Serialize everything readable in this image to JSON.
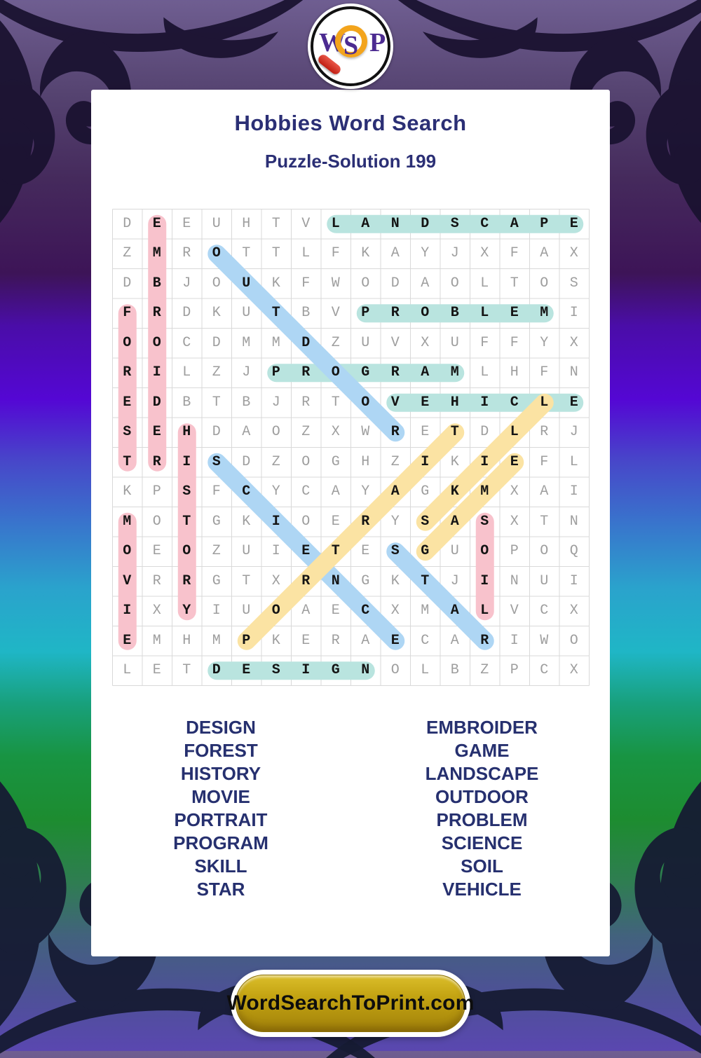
{
  "header": {
    "title": "Hobbies Word Search",
    "subtitle": "Puzzle-Solution 199"
  },
  "logo": {
    "w": "W",
    "s": "S",
    "p": "P"
  },
  "grid": {
    "size": 16,
    "rows": [
      "DEEUHTVLANDSCAPE",
      "ZMROTTLFKAYJXFAX",
      "DBJOUKFWODAOLTOS",
      "FRDKUTBVPROBLEMI",
      "OOCDMMDZUVXUFFYX",
      "RILZJPROGRAMLHFN",
      "EDBTBJRTOVEHICLE",
      "SEHDAOZXWRETDLRJ",
      "TRISDZOGHZIKIEFL",
      "KPSFCYCAYAGKMXAI",
      "MOTGKIOERYSASXTN",
      "OEOZUIETESGUOPOQ",
      "VRRGTXRNGKTJINUI",
      "IXYIUOAECXMALVCX",
      "EMHMPKERAECARIWO",
      "LETDESIGNOLBZPCX"
    ]
  },
  "solutions": [
    {
      "word": "LANDSCAPE",
      "start": [
        1,
        8
      ],
      "end": [
        1,
        16
      ],
      "color": "teal"
    },
    {
      "word": "PROBLEM",
      "start": [
        4,
        9
      ],
      "end": [
        4,
        15
      ],
      "color": "teal"
    },
    {
      "word": "PROGRAM",
      "start": [
        6,
        6
      ],
      "end": [
        6,
        12
      ],
      "color": "teal"
    },
    {
      "word": "VEHICLE",
      "start": [
        7,
        10
      ],
      "end": [
        7,
        16
      ],
      "color": "teal"
    },
    {
      "word": "DESIGN",
      "start": [
        16,
        4
      ],
      "end": [
        16,
        9
      ],
      "color": "teal"
    },
    {
      "word": "EMBROIDER",
      "start": [
        1,
        2
      ],
      "end": [
        9,
        2
      ],
      "color": "pink"
    },
    {
      "word": "FOREST",
      "start": [
        4,
        1
      ],
      "end": [
        9,
        1
      ],
      "color": "pink"
    },
    {
      "word": "HISTORY",
      "start": [
        8,
        3
      ],
      "end": [
        14,
        3
      ],
      "color": "pink"
    },
    {
      "word": "MOVIE",
      "start": [
        11,
        1
      ],
      "end": [
        15,
        1
      ],
      "color": "pink"
    },
    {
      "word": "SOIL",
      "start": [
        11,
        13
      ],
      "end": [
        14,
        13
      ],
      "color": "pink"
    },
    {
      "word": "OUTDOOR",
      "start": [
        2,
        4
      ],
      "end": [
        8,
        10
      ],
      "color": "blue"
    },
    {
      "word": "SCIENCE",
      "start": [
        9,
        4
      ],
      "end": [
        15,
        10
      ],
      "color": "blue"
    },
    {
      "word": "STAR",
      "start": [
        12,
        10
      ],
      "end": [
        15,
        13
      ],
      "color": "blue"
    },
    {
      "word": "PORTRAIT",
      "start": [
        15,
        5
      ],
      "end": [
        8,
        12
      ],
      "color": "yellow"
    },
    {
      "word": "SKILL",
      "start": [
        11,
        11
      ],
      "end": [
        7,
        15
      ],
      "color": "yellow"
    },
    {
      "word": "GAME",
      "start": [
        12,
        11
      ],
      "end": [
        9,
        14
      ],
      "color": "yellow"
    }
  ],
  "palette": {
    "teal": "#b9e4df",
    "pink": "#f8c2cc",
    "blue": "#aed6f4",
    "yellow": "#fbe3a3",
    "grid_line": "#d9d9d9",
    "navy_text": "#2b2f75"
  },
  "word_list": {
    "left": [
      "DESIGN",
      "FOREST",
      "HISTORY",
      "MOVIE",
      "PORTRAIT",
      "PROGRAM",
      "SKILL",
      "STAR"
    ],
    "right": [
      "EMBROIDER",
      "GAME",
      "LANDSCAPE",
      "OUTDOOR",
      "PROBLEM",
      "SCIENCE",
      "SOIL",
      "VEHICLE"
    ]
  },
  "footer": {
    "button_label": "WordSearchToPrint.com"
  }
}
